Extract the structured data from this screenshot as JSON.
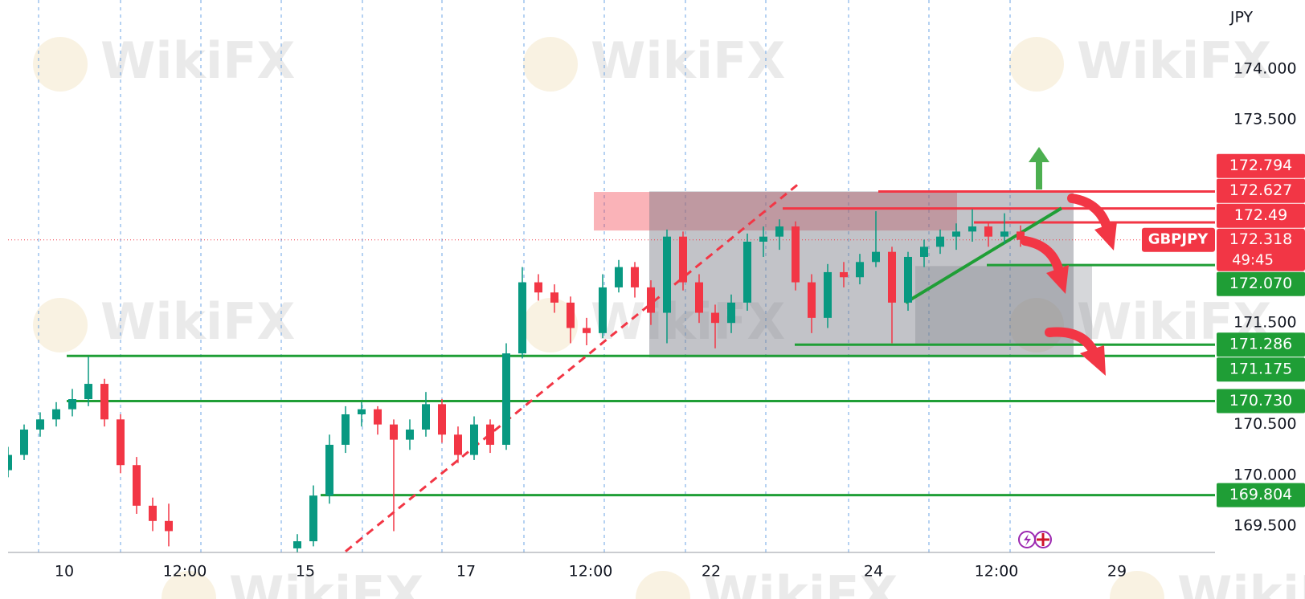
{
  "chart_data": {
    "type": "candlestick",
    "currency": "JPY",
    "watermark": "WikiFX",
    "xlim": [
      0,
      150
    ],
    "ylim": [
      169.24,
      174.68
    ],
    "xticks": [
      {
        "value": 7,
        "label": "10"
      },
      {
        "value": 22,
        "label": "12:00"
      },
      {
        "value": 37,
        "label": "15"
      },
      {
        "value": 57,
        "label": "17"
      },
      {
        "value": 72.5,
        "label": "12:00"
      },
      {
        "value": 87.5,
        "label": "22"
      },
      {
        "value": 107.7,
        "label": "24"
      },
      {
        "value": 123,
        "label": "12:00"
      },
      {
        "value": 138,
        "label": "29"
      }
    ],
    "xgrid": [
      3.8,
      14,
      24,
      34,
      44.1,
      54,
      64.2,
      74.2,
      84.3,
      94.3,
      104.6,
      114.6,
      124.7
    ],
    "yticks": [
      {
        "value": 174,
        "label": "174.000"
      },
      {
        "value": 173.5,
        "label": "173.500"
      },
      {
        "value": 171.5,
        "label": "171.500"
      },
      {
        "value": 170.5,
        "label": "170.500"
      },
      {
        "value": 170,
        "label": "170.000"
      },
      {
        "value": 169.5,
        "label": "169.500"
      }
    ],
    "up_color": "#089981",
    "down_color": "#f23645",
    "candles": [
      [
        0,
        170.05,
        170.28,
        169.98,
        170.2
      ],
      [
        2,
        170.2,
        170.5,
        170.15,
        170.45
      ],
      [
        4,
        170.45,
        170.62,
        170.38,
        170.55
      ],
      [
        6,
        170.55,
        170.72,
        170.48,
        170.65
      ],
      [
        8,
        170.65,
        170.85,
        170.58,
        170.75
      ],
      [
        10,
        170.75,
        171.17,
        170.68,
        170.9
      ],
      [
        12,
        170.9,
        170.95,
        170.48,
        170.55
      ],
      [
        14,
        170.55,
        170.6,
        170.02,
        170.1
      ],
      [
        16,
        170.1,
        170.18,
        169.62,
        169.7
      ],
      [
        18,
        169.7,
        169.78,
        169.45,
        169.55
      ],
      [
        20,
        169.55,
        169.72,
        169.3,
        169.45
      ],
      [
        36,
        169.28,
        169.42,
        169.24,
        169.35
      ],
      [
        38,
        169.35,
        169.9,
        169.3,
        169.8
      ],
      [
        40,
        169.8,
        170.4,
        169.72,
        170.3
      ],
      [
        42,
        170.3,
        170.68,
        170.22,
        170.6
      ],
      [
        44,
        170.6,
        170.72,
        170.48,
        170.65
      ],
      [
        46,
        170.65,
        170.68,
        170.4,
        170.5
      ],
      [
        48,
        170.5,
        170.55,
        169.45,
        170.35
      ],
      [
        50,
        170.35,
        170.55,
        170.25,
        170.45
      ],
      [
        52,
        170.45,
        170.82,
        170.38,
        170.7
      ],
      [
        54,
        170.7,
        170.75,
        170.32,
        170.4
      ],
      [
        56,
        170.4,
        170.48,
        170.12,
        170.2
      ],
      [
        58,
        170.2,
        170.58,
        170.15,
        170.5
      ],
      [
        60,
        170.5,
        170.55,
        170.22,
        170.3
      ],
      [
        62,
        170.3,
        171.3,
        170.25,
        171.2
      ],
      [
        64,
        171.2,
        172.05,
        171.15,
        171.9
      ],
      [
        66,
        171.9,
        171.98,
        171.72,
        171.8
      ],
      [
        68,
        171.8,
        171.88,
        171.6,
        171.7
      ],
      [
        70,
        171.7,
        171.76,
        171.3,
        171.45
      ],
      [
        72,
        171.45,
        171.55,
        171.28,
        171.4
      ],
      [
        74,
        171.4,
        171.98,
        171.35,
        171.85
      ],
      [
        76,
        171.85,
        172.12,
        171.8,
        172.05
      ],
      [
        78,
        172.05,
        172.1,
        171.75,
        171.85
      ],
      [
        80,
        171.85,
        171.92,
        171.48,
        171.6
      ],
      [
        82,
        171.6,
        172.42,
        171.3,
        172.35
      ],
      [
        84,
        172.35,
        172.4,
        171.82,
        171.9
      ],
      [
        86,
        171.9,
        171.98,
        171.5,
        171.6
      ],
      [
        88,
        171.6,
        171.68,
        171.25,
        171.5
      ],
      [
        90,
        171.5,
        171.78,
        171.4,
        171.7
      ],
      [
        92,
        171.7,
        172.38,
        171.62,
        172.3
      ],
      [
        94,
        172.3,
        172.45,
        172.15,
        172.35
      ],
      [
        96,
        172.35,
        172.52,
        172.22,
        172.45
      ],
      [
        98,
        172.45,
        172.5,
        171.82,
        171.9
      ],
      [
        100,
        171.9,
        171.98,
        171.4,
        171.55
      ],
      [
        102,
        171.55,
        172.08,
        171.45,
        172.0
      ],
      [
        104,
        172.0,
        172.1,
        171.85,
        171.95
      ],
      [
        106,
        171.95,
        172.18,
        171.88,
        172.1
      ],
      [
        108,
        172.1,
        172.6,
        172.05,
        172.2
      ],
      [
        110,
        172.2,
        172.25,
        171.3,
        171.7
      ],
      [
        112,
        171.7,
        172.2,
        171.62,
        172.15
      ],
      [
        114,
        172.15,
        172.32,
        172.05,
        172.25
      ],
      [
        116,
        172.25,
        172.42,
        172.18,
        172.35
      ],
      [
        118,
        172.35,
        172.48,
        172.22,
        172.4
      ],
      [
        120,
        172.4,
        172.62,
        172.3,
        172.45
      ],
      [
        122,
        172.45,
        172.5,
        172.25,
        172.35
      ],
      [
        124,
        172.35,
        172.58,
        172.28,
        172.4
      ],
      [
        126,
        172.4,
        172.46,
        172.25,
        172.318
      ]
    ],
    "zones": [
      {
        "x": [
          72.9,
          118.1
        ],
        "y": [
          172.41,
          172.79
        ],
        "color": "rgba(242,54,69,0.38)"
      },
      {
        "x": [
          79.8,
          132.6
        ],
        "y": [
          171.16,
          172.795
        ],
        "color": "rgba(120,123,134,0.45)"
      },
      {
        "x": [
          112.9,
          134.9
        ],
        "y": [
          171.28,
          172.06
        ],
        "color": "rgba(120,123,134,0.30)"
      }
    ],
    "trendlines": [
      {
        "x": [
          42,
          98.7
        ],
        "y": [
          169.25,
          172.89
        ],
        "color": "#f23645",
        "dashed": true
      },
      {
        "x": [
          111.7,
          131.1
        ],
        "y": [
          171.7,
          172.63
        ],
        "color": "#1f9e36",
        "dashed": false
      }
    ],
    "levels": [
      {
        "value": 172.794,
        "from": 108.3,
        "color": "#f23645"
      },
      {
        "value": 172.627,
        "from": 96.4,
        "color": "#f23645"
      },
      {
        "value": 172.49,
        "from": 120.2,
        "color": "#f23645"
      },
      {
        "value": 172.07,
        "label": "172.070",
        "from": 121.8,
        "color": "#1f9e36"
      },
      {
        "value": 171.286,
        "from": 97.9,
        "color": "#1f9e36"
      },
      {
        "value": 171.175,
        "from": 7.3,
        "color": "#1f9e36"
      },
      {
        "value": 170.73,
        "label": "170.730",
        "from": 7.3,
        "color": "#1f9e36"
      },
      {
        "value": 169.804,
        "from": 38.9,
        "color": "#1f9e36"
      }
    ],
    "current": {
      "symbol": "GBPJPY",
      "value": 172.318,
      "countdown": "49:45",
      "color": "#f23645"
    }
  }
}
